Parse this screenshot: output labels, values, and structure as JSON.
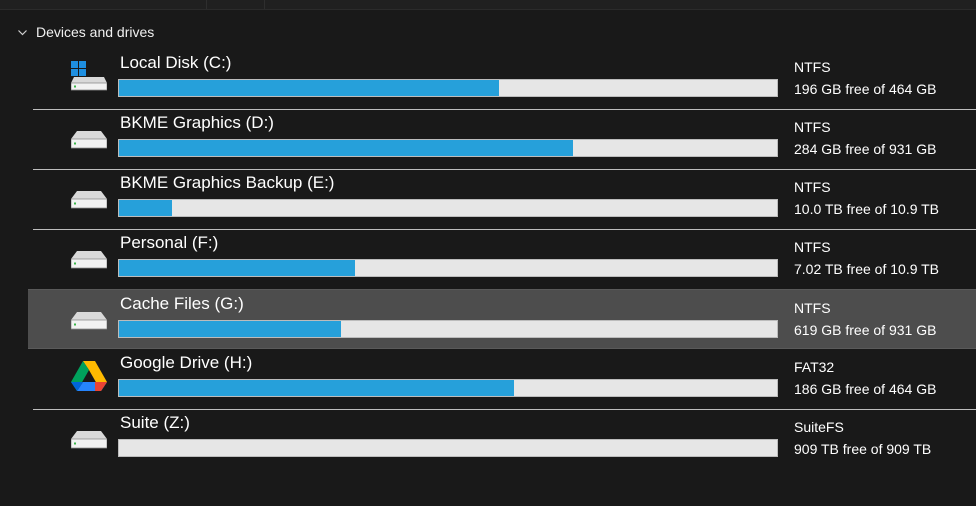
{
  "section": {
    "title": "Devices and drives",
    "chevron_icon": "chevron-down-icon"
  },
  "colors": {
    "background": "#191919",
    "selected_row": "#4d4d4d",
    "usage_fill": "#26a0da",
    "usage_track": "#e6e6e6"
  },
  "drives": [
    {
      "name": "Local Disk (C:)",
      "icon": "windows-drive-icon",
      "filesystem": "NTFS",
      "free_text": "196 GB free of 464 GB",
      "used_fraction": 0.578,
      "selected": false
    },
    {
      "name": "BKME Graphics (D:)",
      "icon": "hard-drive-icon",
      "filesystem": "NTFS",
      "free_text": "284 GB free of 931 GB",
      "used_fraction": 0.69,
      "selected": false
    },
    {
      "name": "BKME Graphics Backup (E:)",
      "icon": "hard-drive-icon",
      "filesystem": "NTFS",
      "free_text": "10.0 TB free of 10.9 TB",
      "used_fraction": 0.08,
      "selected": false
    },
    {
      "name": "Personal (F:)",
      "icon": "hard-drive-icon",
      "filesystem": "NTFS",
      "free_text": "7.02 TB free of 10.9 TB",
      "used_fraction": 0.358,
      "selected": false
    },
    {
      "name": "Cache Files (G:)",
      "icon": "hard-drive-icon",
      "filesystem": "NTFS",
      "free_text": "619 GB free of 931 GB",
      "used_fraction": 0.338,
      "selected": true
    },
    {
      "name": "Google Drive (H:)",
      "icon": "google-drive-icon",
      "filesystem": "FAT32",
      "free_text": "186 GB free of 464 GB",
      "used_fraction": 0.6,
      "selected": false
    },
    {
      "name": "Suite (Z:)",
      "icon": "hard-drive-icon",
      "filesystem": "SuiteFS",
      "free_text": "909 TB free of 909 TB",
      "used_fraction": 0.0,
      "selected": false
    }
  ]
}
